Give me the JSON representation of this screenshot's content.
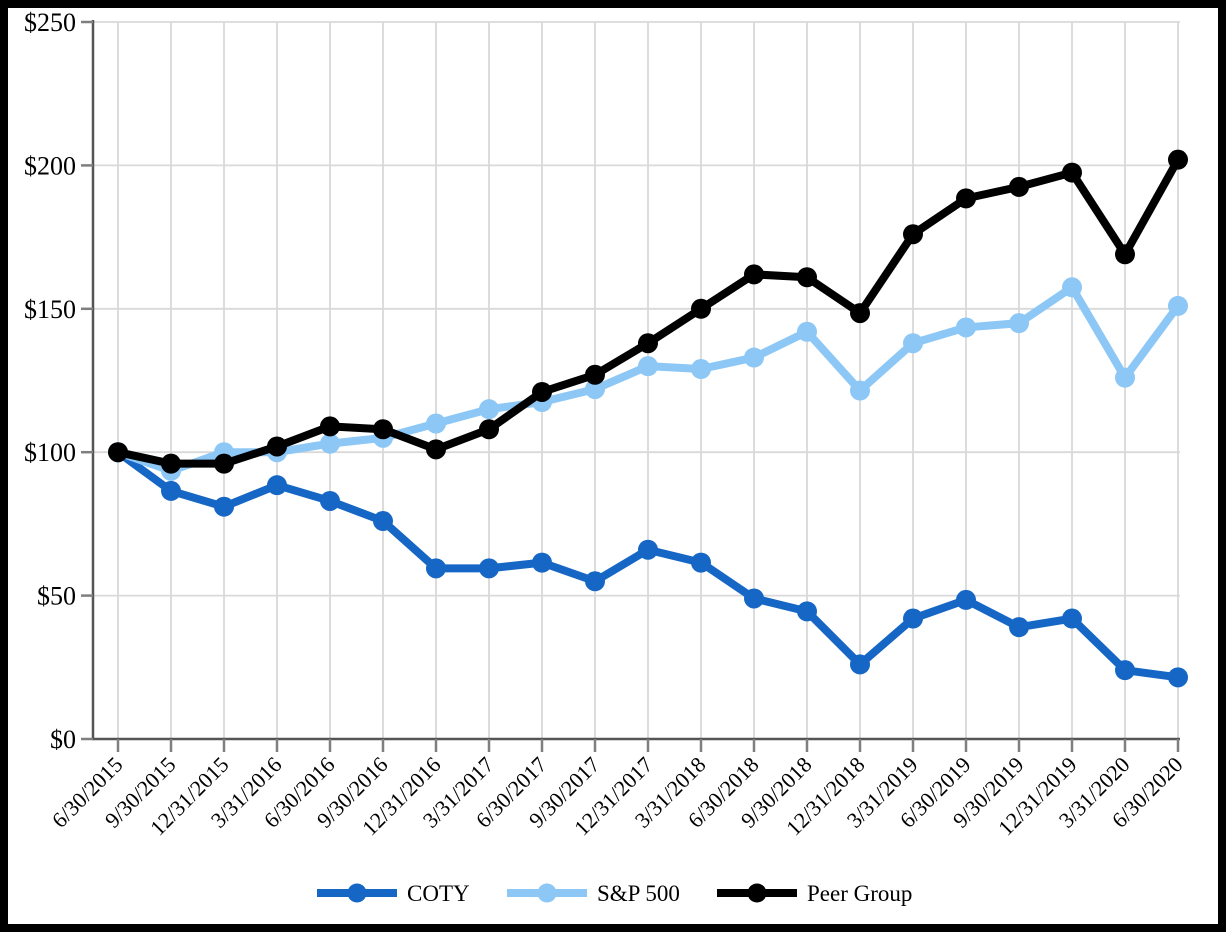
{
  "page": {
    "background_color": "#ffffff",
    "frame_color": "#000000"
  },
  "chart_data": {
    "type": "line",
    "title": "",
    "xlabel": "",
    "ylabel": "",
    "x_tick_labels": [
      "6/30/2015",
      "9/30/2015",
      "12/31/2015",
      "3/31/2016",
      "6/30/2016",
      "9/30/2016",
      "12/31/2016",
      "3/31/2017",
      "6/30/2017",
      "9/30/2017",
      "12/31/2017",
      "3/31/2018",
      "6/30/2018",
      "9/30/2018",
      "12/31/2018",
      "3/31/2019",
      "6/30/2019",
      "9/30/2019",
      "12/31/2019",
      "3/31/2020",
      "6/30/2020"
    ],
    "y_tick_labels": [
      "$0",
      "$50",
      "$100",
      "$150",
      "$200",
      "$250"
    ],
    "y_tick_values": [
      0,
      50,
      100,
      150,
      200,
      250
    ],
    "ylim": [
      0,
      250
    ],
    "grid": true,
    "grid_color": "#d9d9d9",
    "axis_color": "#555555",
    "tick_color": "#7f7f7f",
    "legend_position": "bottom-center",
    "series": [
      {
        "name": "COTY",
        "color": "#1667c5",
        "marker": "circle",
        "values": [
          100,
          86.5,
          81,
          88.5,
          83,
          76,
          59.5,
          59.5,
          61.5,
          55,
          66,
          61.5,
          49,
          44.5,
          26,
          42,
          48.5,
          39,
          42,
          24,
          21.5
        ]
      },
      {
        "name": "S&P 500",
        "color": "#8cc7f6",
        "marker": "circle",
        "values": [
          100,
          93.5,
          100,
          100,
          103,
          105,
          110,
          115,
          117.5,
          122,
          130,
          129,
          133,
          142,
          121.5,
          138,
          143.5,
          145,
          157.5,
          126,
          151
        ]
      },
      {
        "name": "Peer Group",
        "color": "#000000",
        "marker": "circle",
        "values": [
          100,
          96,
          96,
          102,
          109,
          108,
          101,
          108,
          121,
          127,
          138,
          150,
          162,
          161,
          148.5,
          176,
          188.5,
          192.5,
          197.5,
          169,
          202
        ]
      }
    ]
  }
}
